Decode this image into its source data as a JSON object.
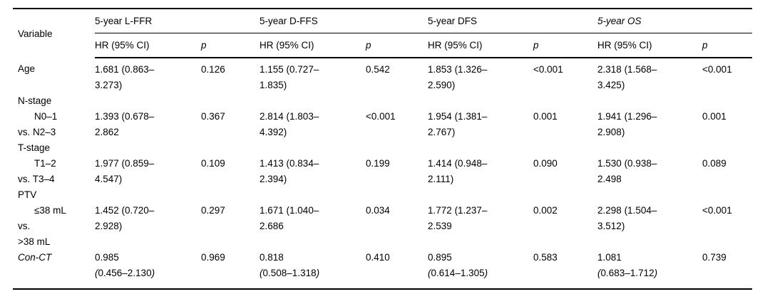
{
  "colors": {
    "background": "#ffffff",
    "text": "#000000",
    "rule": "#000000"
  },
  "table": {
    "header": {
      "variable": "Variable",
      "groups": [
        {
          "label": "5-year L-FFR",
          "italic": false
        },
        {
          "label": "5-year D-FFS",
          "italic": false
        },
        {
          "label": "5-year DFS",
          "italic": false
        },
        {
          "label": "5-year OS",
          "italic": true
        }
      ],
      "sub": {
        "hr": "HR (95% CI)",
        "p": "p"
      }
    },
    "rows": [
      {
        "type": "data",
        "label_lines": [
          {
            "text": "Age",
            "indent": false
          }
        ],
        "cells": [
          {
            "hr": [
              "1.681 (0.863–",
              "3.273)"
            ],
            "p": "0.126"
          },
          {
            "hr": [
              "1.155 (0.727–",
              "1.835)"
            ],
            "p": "0.542"
          },
          {
            "hr": [
              "1.853 (1.326–",
              "2.590)"
            ],
            "p": "<0.001"
          },
          {
            "hr": [
              "2.318 (1.568–",
              "3.425)"
            ],
            "p": "<0.001"
          }
        ]
      },
      {
        "type": "section",
        "label_lines": [
          {
            "text": "N-stage",
            "indent": false
          }
        ]
      },
      {
        "type": "data",
        "label_lines": [
          {
            "text": "N0–1",
            "indent": true
          },
          {
            "text": "vs. N2–3",
            "indent": false
          }
        ],
        "cells": [
          {
            "hr": [
              "1.393 (0.678–",
              "2.862"
            ],
            "p": "0.367"
          },
          {
            "hr": [
              "2.814 (1.803–",
              "4.392)"
            ],
            "p": "<0.001"
          },
          {
            "hr": [
              "1.954 (1.381–",
              "2.767)"
            ],
            "p": "0.001"
          },
          {
            "hr": [
              "1.941 (1.296–",
              "2.908)"
            ],
            "p": "0.001"
          }
        ]
      },
      {
        "type": "section",
        "label_lines": [
          {
            "text": "T-stage",
            "indent": false
          }
        ]
      },
      {
        "type": "data",
        "label_lines": [
          {
            "text": "T1–2",
            "indent": true
          },
          {
            "text": "vs. T3–4",
            "indent": false
          }
        ],
        "cells": [
          {
            "hr": [
              "1.977 (0.859–",
              "4.547)"
            ],
            "p": "0.109"
          },
          {
            "hr": [
              "1.413 (0.834–",
              "2.394)"
            ],
            "p": "0.199"
          },
          {
            "hr": [
              "1.414 (0.948–",
              "2.111)"
            ],
            "p": "0.090"
          },
          {
            "hr": [
              "1.530 (0.938–",
              "2.498"
            ],
            "p": "0.089"
          }
        ]
      },
      {
        "type": "section",
        "label_lines": [
          {
            "text": "PTV",
            "indent": false
          }
        ]
      },
      {
        "type": "data",
        "label_lines": [
          {
            "text": "≤38 mL",
            "indent": true
          },
          {
            "text": "vs.",
            "indent": false
          },
          {
            "text": ">38 mL",
            "indent": false
          }
        ],
        "cells": [
          {
            "hr": [
              "1.452 (0.720–",
              "2.928)"
            ],
            "p": "0.297"
          },
          {
            "hr": [
              "1.671 (1.040–",
              "2.686"
            ],
            "p": "0.034"
          },
          {
            "hr": [
              "1.772 (1.237–",
              "2.539"
            ],
            "p": "0.002"
          },
          {
            "hr": [
              "2.298 (1.504–",
              "3.512)"
            ],
            "p": "<0.001"
          }
        ]
      },
      {
        "type": "data",
        "italic_label": true,
        "italic_parens": true,
        "label_lines": [
          {
            "text": "Con-CT",
            "indent": false
          }
        ],
        "cells": [
          {
            "hr": [
              "0.985",
              "(0.456–2.130)"
            ],
            "p": "0.969"
          },
          {
            "hr": [
              "0.818",
              "(0.508–1.318)"
            ],
            "p": "0.410"
          },
          {
            "hr": [
              "0.895",
              "(0.614–1.305)"
            ],
            "p": "0.583"
          },
          {
            "hr": [
              "1.081",
              "(0.683–1.712)"
            ],
            "p": "0.739"
          }
        ]
      }
    ]
  }
}
